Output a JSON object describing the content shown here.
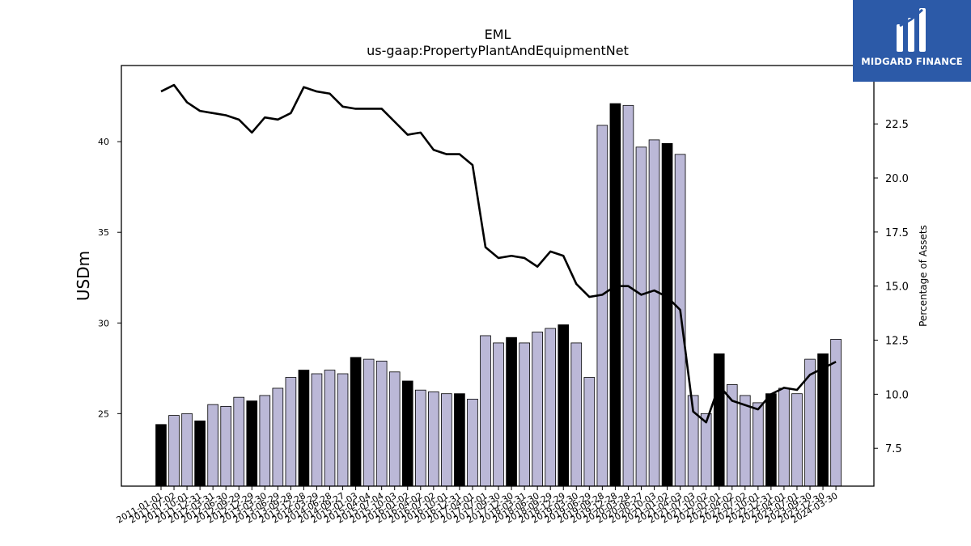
{
  "chart_data": {
    "type": "bar",
    "title": "EML",
    "subtitle": "us-gaap:PropertyPlantAndEquipmentNet",
    "ylabel": "USDm",
    "y2label": "Percentage of Assets",
    "ylim": [
      21,
      44.2
    ],
    "y2lim": [
      5.75,
      25.2
    ],
    "yticks": [
      25,
      30,
      35,
      40
    ],
    "y2ticks": [
      7.5,
      10.0,
      12.5,
      15.0,
      17.5,
      20.0,
      22.5
    ],
    "categories": [
      "2011-01-01",
      "2011-07-02",
      "2011-10-01",
      "2011-12-31",
      "2012-03-31",
      "2012-06-30",
      "2012-09-29",
      "2012-12-29",
      "2013-03-30",
      "2013-06-29",
      "2013-09-28",
      "2013-12-28",
      "2014-03-29",
      "2014-06-28",
      "2014-09-27",
      "2015-01-03",
      "2015-04-04",
      "2015-07-04",
      "2015-10-03",
      "2016-01-02",
      "2016-04-02",
      "2016-07-02",
      "2016-10-01",
      "2016-12-31",
      "2017-04-01",
      "2017-07-01",
      "2017-09-30",
      "2017-12-30",
      "2018-03-31",
      "2018-06-30",
      "2018-09-29",
      "2018-12-29",
      "2019-03-30",
      "2019-06-29",
      "2019-09-28",
      "2019-12-28",
      "2020-03-28",
      "2020-06-27",
      "2020-10-03",
      "2021-01-02",
      "2021-04-03",
      "2021-07-03",
      "2021-10-02",
      "2022-01-01",
      "2022-04-02",
      "2022-07-02",
      "2022-10-01",
      "2022-12-31",
      "2023-04-01",
      "2023-07-01",
      "2023-09-30",
      "2023-12-30",
      "2024-03-30"
    ],
    "values": [
      24.4,
      24.9,
      25.0,
      24.6,
      25.5,
      25.4,
      25.9,
      25.7,
      26.0,
      26.4,
      27.0,
      27.4,
      27.2,
      27.4,
      27.2,
      28.1,
      28.0,
      27.9,
      27.3,
      26.8,
      26.3,
      26.2,
      26.1,
      26.1,
      25.8,
      29.3,
      28.9,
      29.2,
      28.9,
      29.5,
      29.7,
      29.9,
      28.9,
      27.0,
      40.9,
      42.1,
      42.0,
      39.7,
      40.1,
      39.9,
      39.3,
      26.0,
      25.0,
      28.3,
      26.6,
      26.0,
      25.6,
      26.1,
      26.4,
      26.1,
      28.0,
      28.3,
      29.1
    ],
    "highlight": [
      true,
      false,
      false,
      true,
      false,
      false,
      false,
      true,
      false,
      false,
      false,
      true,
      false,
      false,
      false,
      true,
      false,
      false,
      false,
      true,
      false,
      false,
      false,
      true,
      false,
      false,
      false,
      true,
      false,
      false,
      false,
      true,
      false,
      false,
      false,
      true,
      false,
      false,
      false,
      true,
      false,
      false,
      false,
      true,
      false,
      false,
      false,
      true,
      false,
      false,
      false,
      true,
      false
    ],
    "series": [
      {
        "name": "Percentage of Assets",
        "axis": "right",
        "type": "line",
        "values": [
          24.0,
          24.3,
          23.5,
          23.1,
          23.0,
          22.9,
          22.7,
          22.1,
          22.8,
          22.7,
          23.0,
          24.2,
          24.0,
          23.9,
          23.3,
          23.2,
          23.2,
          23.2,
          22.6,
          22.0,
          22.1,
          21.3,
          21.1,
          21.1,
          20.6,
          16.8,
          16.3,
          16.4,
          16.3,
          15.9,
          16.6,
          16.4,
          15.1,
          14.5,
          14.6,
          15.0,
          15.0,
          14.6,
          14.8,
          14.5,
          13.9,
          9.2,
          8.7,
          10.4,
          9.7,
          9.5,
          9.3,
          10.0,
          10.3,
          10.2,
          10.9,
          11.2,
          11.5
        ]
      }
    ],
    "colors": {
      "bar": "#bbb8d7",
      "bar_highlight": "#000000",
      "bar_edge": "#000000",
      "line": "#000000"
    },
    "grid": false,
    "legend": "none"
  },
  "logo": {
    "text": "MIDGARD FINANCE",
    "bg": "#2c5aa8"
  }
}
